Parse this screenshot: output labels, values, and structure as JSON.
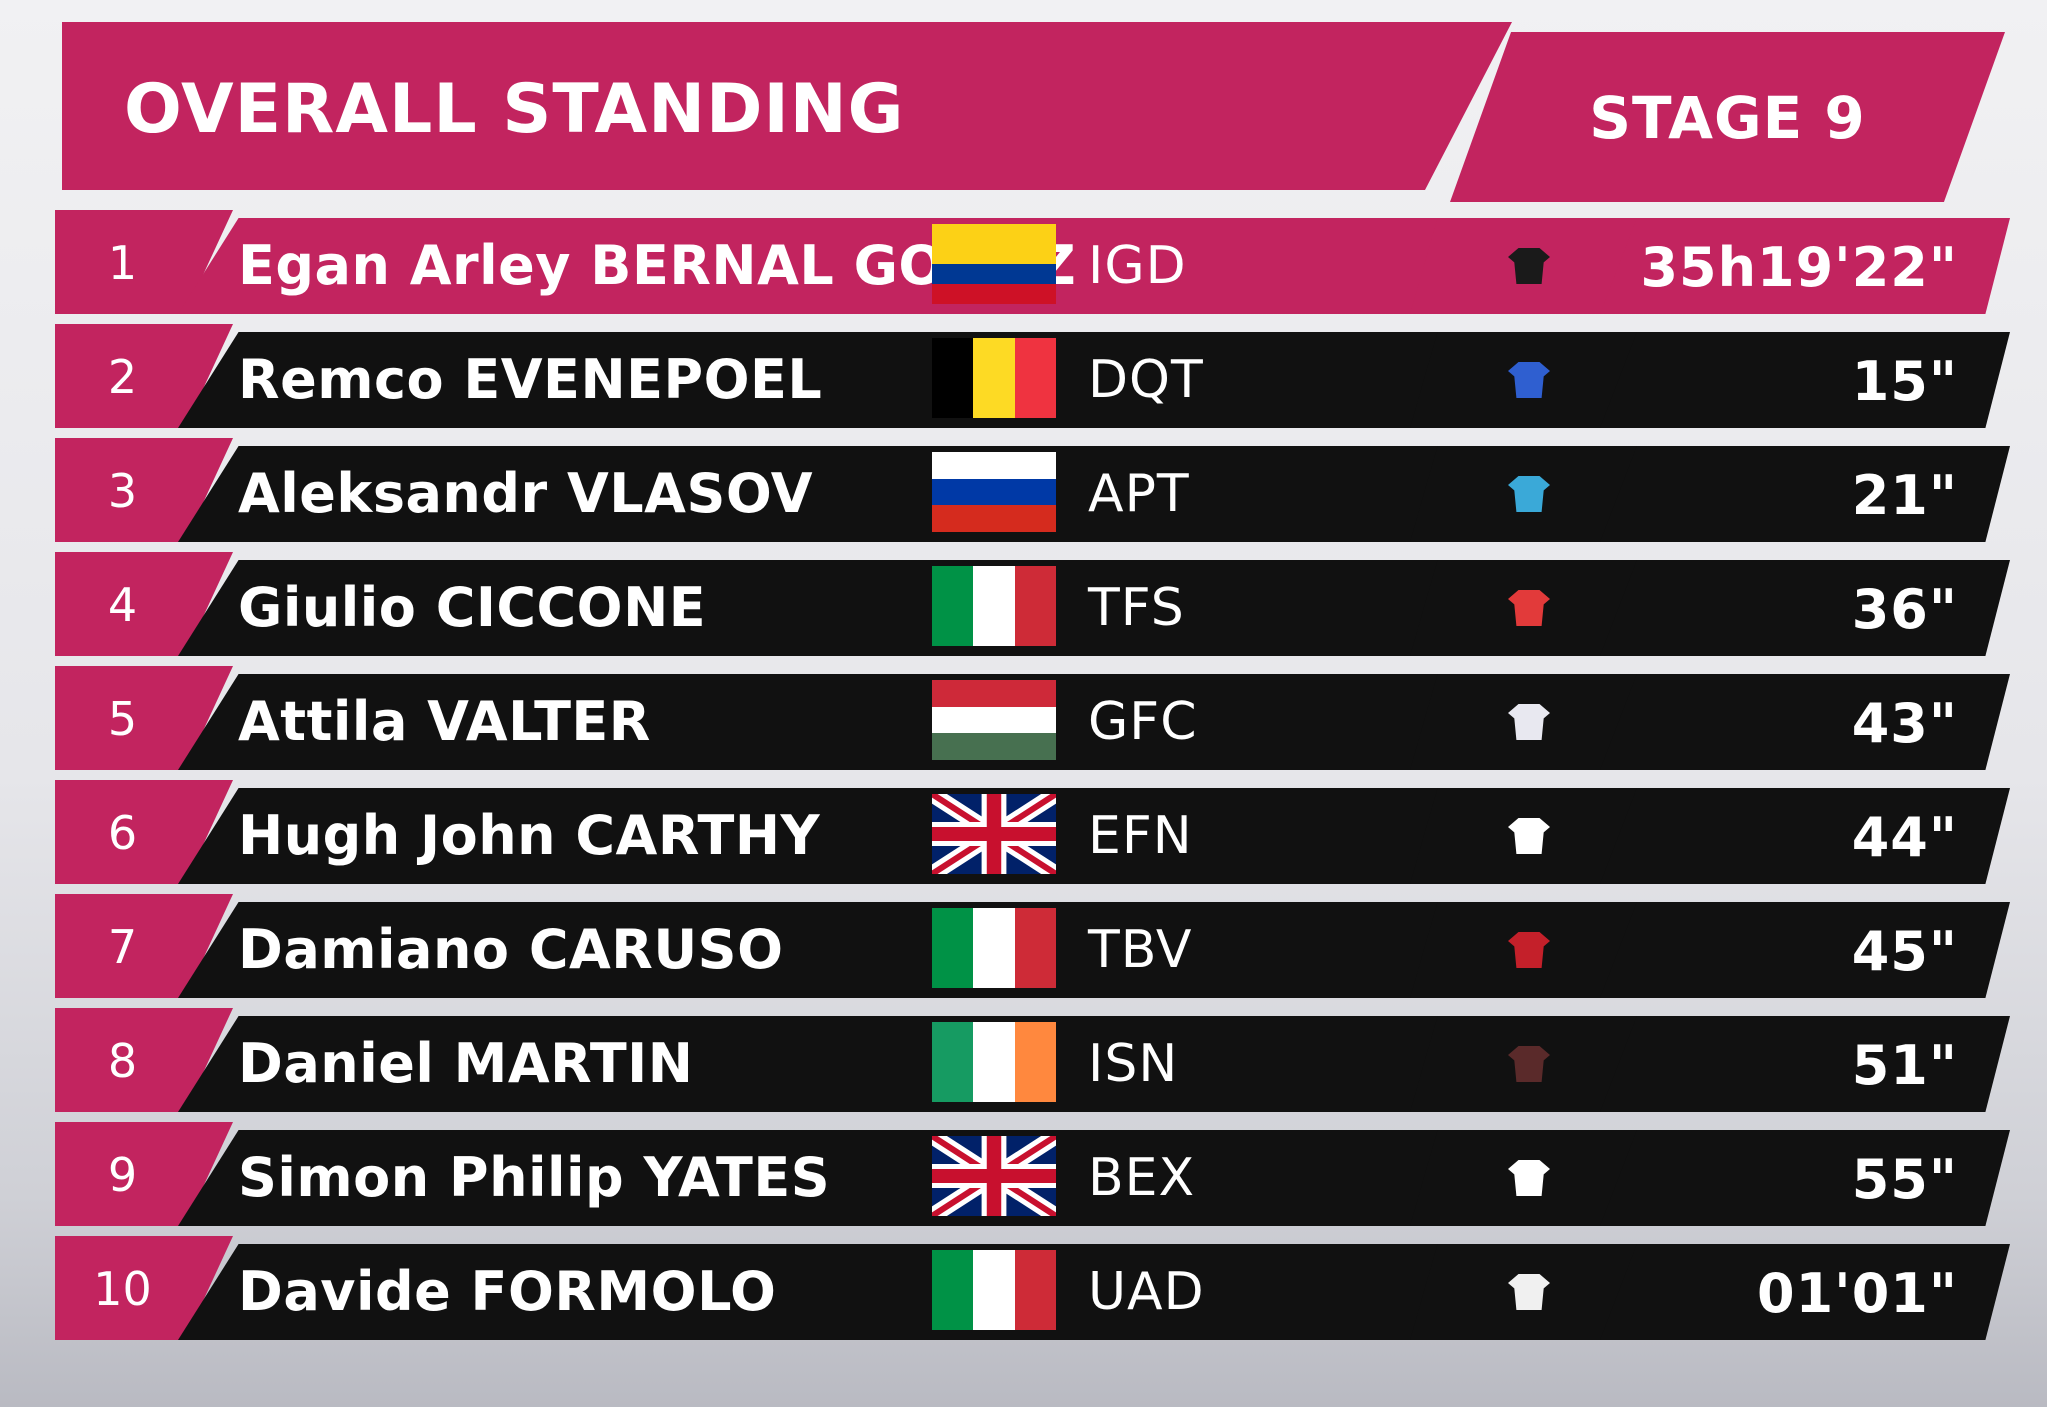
{
  "header": {
    "title": "OVERALL STANDING",
    "stage": "STAGE 9"
  },
  "standings": [
    {
      "rank": "1",
      "name": "Egan Arley BERNAL GOMEZ",
      "team": "IGD",
      "time": "35h19'22\"",
      "flag_icon": "colombia-flag-icon",
      "flag_colors": [
        "#fcd116",
        "#003893",
        "#ce1126"
      ],
      "jersey_icon": "jersey-icon",
      "jersey_color": "#1a1a1a"
    },
    {
      "rank": "2",
      "name": "Remco EVENEPOEL",
      "team": "DQT",
      "time": "15\"",
      "flag_icon": "belgium-flag-icon",
      "flag_colors": [
        "#000000",
        "#fdda24",
        "#ef3340"
      ],
      "jersey_icon": "jersey-icon",
      "jersey_color": "#2f5fd0"
    },
    {
      "rank": "3",
      "name": "Aleksandr VLASOV",
      "team": "APT",
      "time": "21\"",
      "flag_icon": "russia-flag-icon",
      "flag_colors": [
        "#ffffff",
        "#0039a6",
        "#d52b1e"
      ],
      "jersey_icon": "jersey-icon",
      "jersey_color": "#3aa9d8"
    },
    {
      "rank": "4",
      "name": "Giulio CICCONE",
      "team": "TFS",
      "time": "36\"",
      "flag_icon": "italy-flag-icon",
      "flag_colors": [
        "#009246",
        "#ffffff",
        "#ce2b37"
      ],
      "jersey_icon": "jersey-icon",
      "jersey_color": "#e23a3a"
    },
    {
      "rank": "5",
      "name": "Attila VALTER",
      "team": "GFC",
      "time": "43\"",
      "flag_icon": "hungary-flag-icon",
      "flag_colors": [
        "#ce2939",
        "#ffffff",
        "#477050"
      ],
      "jersey_icon": "jersey-icon",
      "jersey_color": "#e8e8f0"
    },
    {
      "rank": "6",
      "name": "Hugh John CARTHY",
      "team": "EFN",
      "time": "44\"",
      "flag_icon": "uk-flag-icon",
      "flag_colors": [
        "#012169",
        "#ffffff",
        "#c8102e"
      ],
      "jersey_icon": "jersey-icon",
      "jersey_color": "#ffffff"
    },
    {
      "rank": "7",
      "name": "Damiano CARUSO",
      "team": "TBV",
      "time": "45\"",
      "flag_icon": "italy-flag-icon",
      "flag_colors": [
        "#009246",
        "#ffffff",
        "#ce2b37"
      ],
      "jersey_icon": "jersey-icon",
      "jersey_color": "#c4202a"
    },
    {
      "rank": "8",
      "name": "Daniel MARTIN",
      "team": "ISN",
      "time": "51\"",
      "flag_icon": "ireland-flag-icon",
      "flag_colors": [
        "#169b62",
        "#ffffff",
        "#ff883e"
      ],
      "jersey_icon": "jersey-icon",
      "jersey_color": "#5a2a2a"
    },
    {
      "rank": "9",
      "name": "Simon Philip YATES",
      "team": "BEX",
      "time": "55\"",
      "flag_icon": "uk-flag-icon",
      "flag_colors": [
        "#012169",
        "#ffffff",
        "#c8102e"
      ],
      "jersey_icon": "jersey-icon",
      "jersey_color": "#ffffff"
    },
    {
      "rank": "10",
      "name": "Davide FORMOLO",
      "team": "UAD",
      "time": "01'01\"",
      "flag_icon": "italy-flag-icon",
      "flag_colors": [
        "#009246",
        "#ffffff",
        "#ce2b37"
      ],
      "jersey_icon": "jersey-icon",
      "jersey_color": "#f0f0f0"
    }
  ]
}
